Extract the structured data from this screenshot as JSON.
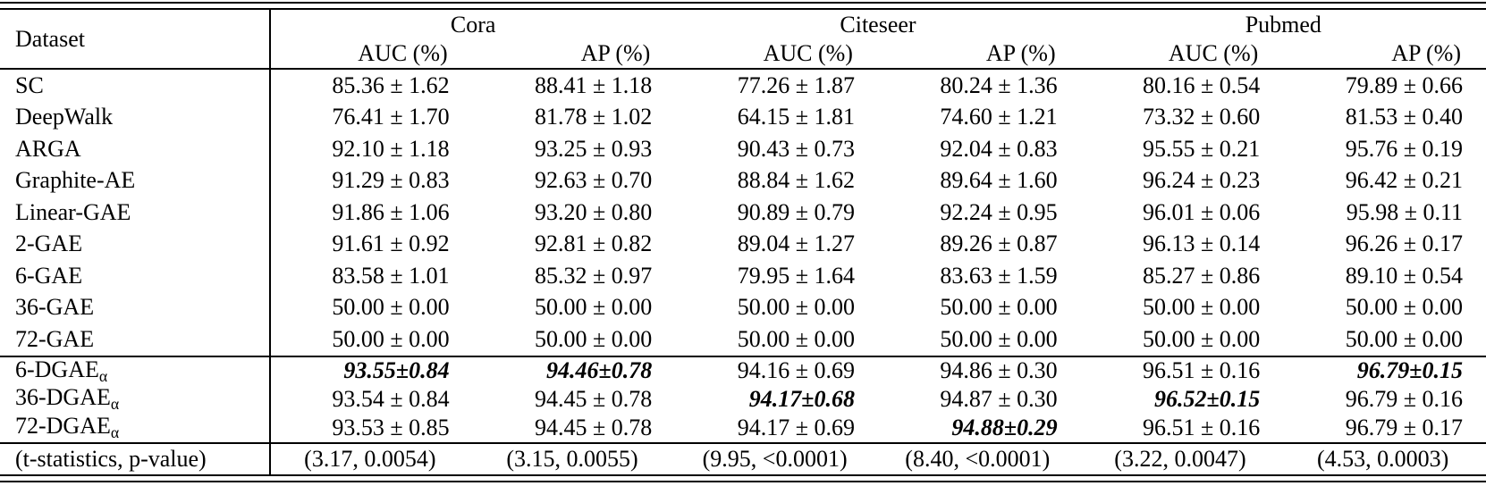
{
  "colors": {
    "text": "#000000",
    "background": "#ffffff",
    "rule": "#000000"
  },
  "table": {
    "corner_header": "Dataset",
    "group_headers": [
      "Cora",
      "Citeseer",
      "Pubmed"
    ],
    "metric_headers": [
      "AUC (%)",
      "AP (%)",
      "AUC (%)",
      "AP (%)",
      "AUC (%)",
      "AP (%)"
    ],
    "rows": [
      {
        "model": "SC",
        "sub": "",
        "section": "baseline",
        "values": [
          {
            "t": "85.36 ± 1.62",
            "b": false
          },
          {
            "t": "88.41 ± 1.18",
            "b": false
          },
          {
            "t": "77.26 ± 1.87",
            "b": false
          },
          {
            "t": "80.24 ± 1.36",
            "b": false
          },
          {
            "t": "80.16 ± 0.54",
            "b": false
          },
          {
            "t": "79.89 ± 0.66",
            "b": false
          }
        ]
      },
      {
        "model": "DeepWalk",
        "sub": "",
        "section": "baseline",
        "values": [
          {
            "t": "76.41 ± 1.70",
            "b": false
          },
          {
            "t": "81.78 ± 1.02",
            "b": false
          },
          {
            "t": "64.15 ± 1.81",
            "b": false
          },
          {
            "t": "74.60 ± 1.21",
            "b": false
          },
          {
            "t": "73.32 ± 0.60",
            "b": false
          },
          {
            "t": "81.53 ± 0.40",
            "b": false
          }
        ]
      },
      {
        "model": "ARGA",
        "sub": "",
        "section": "baseline",
        "values": [
          {
            "t": "92.10 ± 1.18",
            "b": false
          },
          {
            "t": "93.25 ± 0.93",
            "b": false
          },
          {
            "t": "90.43 ± 0.73",
            "b": false
          },
          {
            "t": "92.04 ± 0.83",
            "b": false
          },
          {
            "t": "95.55 ± 0.21",
            "b": false
          },
          {
            "t": "95.76 ± 0.19",
            "b": false
          }
        ]
      },
      {
        "model": "Graphite-AE",
        "sub": "",
        "section": "baseline",
        "values": [
          {
            "t": "91.29 ± 0.83",
            "b": false
          },
          {
            "t": "92.63 ± 0.70",
            "b": false
          },
          {
            "t": "88.84 ± 1.62",
            "b": false
          },
          {
            "t": "89.64 ± 1.60",
            "b": false
          },
          {
            "t": "96.24 ± 0.23",
            "b": false
          },
          {
            "t": "96.42 ± 0.21",
            "b": false
          }
        ]
      },
      {
        "model": "Linear-GAE",
        "sub": "",
        "section": "baseline",
        "values": [
          {
            "t": "91.86 ± 1.06",
            "b": false
          },
          {
            "t": "93.20 ± 0.80",
            "b": false
          },
          {
            "t": "90.89 ± 0.79",
            "b": false
          },
          {
            "t": "92.24 ± 0.95",
            "b": false
          },
          {
            "t": "96.01 ± 0.06",
            "b": false
          },
          {
            "t": "95.98 ± 0.11",
            "b": false
          }
        ]
      },
      {
        "model": "2-GAE",
        "sub": "",
        "section": "baseline",
        "values": [
          {
            "t": "91.61 ± 0.92",
            "b": false
          },
          {
            "t": "92.81 ± 0.82",
            "b": false
          },
          {
            "t": "89.04 ± 1.27",
            "b": false
          },
          {
            "t": "89.26 ± 0.87",
            "b": false
          },
          {
            "t": "96.13 ± 0.14",
            "b": false
          },
          {
            "t": "96.26 ± 0.17",
            "b": false
          }
        ]
      },
      {
        "model": "6-GAE",
        "sub": "",
        "section": "baseline",
        "values": [
          {
            "t": "83.58 ± 1.01",
            "b": false
          },
          {
            "t": "85.32 ± 0.97",
            "b": false
          },
          {
            "t": "79.95 ± 1.64",
            "b": false
          },
          {
            "t": "83.63 ± 1.59",
            "b": false
          },
          {
            "t": "85.27 ± 0.86",
            "b": false
          },
          {
            "t": "89.10 ± 0.54",
            "b": false
          }
        ]
      },
      {
        "model": "36-GAE",
        "sub": "",
        "section": "baseline",
        "values": [
          {
            "t": "50.00 ± 0.00",
            "b": false
          },
          {
            "t": "50.00 ± 0.00",
            "b": false
          },
          {
            "t": "50.00 ± 0.00",
            "b": false
          },
          {
            "t": "50.00 ± 0.00",
            "b": false
          },
          {
            "t": "50.00 ± 0.00",
            "b": false
          },
          {
            "t": "50.00 ± 0.00",
            "b": false
          }
        ]
      },
      {
        "model": "72-GAE",
        "sub": "",
        "section": "baseline",
        "values": [
          {
            "t": "50.00 ± 0.00",
            "b": false
          },
          {
            "t": "50.00 ± 0.00",
            "b": false
          },
          {
            "t": "50.00 ± 0.00",
            "b": false
          },
          {
            "t": "50.00 ± 0.00",
            "b": false
          },
          {
            "t": "50.00 ± 0.00",
            "b": false
          },
          {
            "t": "50.00 ± 0.00",
            "b": false
          }
        ]
      },
      {
        "model": "6-DGAE",
        "sub": "α",
        "section": "dgae",
        "values": [
          {
            "t": "93.55±0.84",
            "b": true
          },
          {
            "t": "94.46±0.78",
            "b": true
          },
          {
            "t": "94.16 ± 0.69",
            "b": false
          },
          {
            "t": "94.86 ± 0.30",
            "b": false
          },
          {
            "t": "96.51 ± 0.16",
            "b": false
          },
          {
            "t": "96.79±0.15",
            "b": true
          }
        ]
      },
      {
        "model": "36-DGAE",
        "sub": "α",
        "section": "dgae",
        "values": [
          {
            "t": "93.54 ± 0.84",
            "b": false
          },
          {
            "t": "94.45 ± 0.78",
            "b": false
          },
          {
            "t": "94.17±0.68",
            "b": true
          },
          {
            "t": "94.87 ± 0.30",
            "b": false
          },
          {
            "t": "96.52±0.15",
            "b": true
          },
          {
            "t": "96.79 ± 0.16",
            "b": false
          }
        ]
      },
      {
        "model": "72-DGAE",
        "sub": "α",
        "section": "dgae",
        "values": [
          {
            "t": "93.53 ± 0.85",
            "b": false
          },
          {
            "t": "94.45 ± 0.78",
            "b": false
          },
          {
            "t": "94.17 ± 0.69",
            "b": false
          },
          {
            "t": "94.88±0.29",
            "b": true
          },
          {
            "t": "96.51 ± 0.16",
            "b": false
          },
          {
            "t": "96.79 ± 0.17",
            "b": false
          }
        ]
      }
    ],
    "footer": {
      "label": "(t-statistics, p-value)",
      "values": [
        "(3.17, 0.0054)",
        "(3.15, 0.0055)",
        "(9.95, <0.0001)",
        "(8.40, <0.0001)",
        "(3.22, 0.0047)",
        "(4.53, 0.0003)"
      ]
    }
  }
}
